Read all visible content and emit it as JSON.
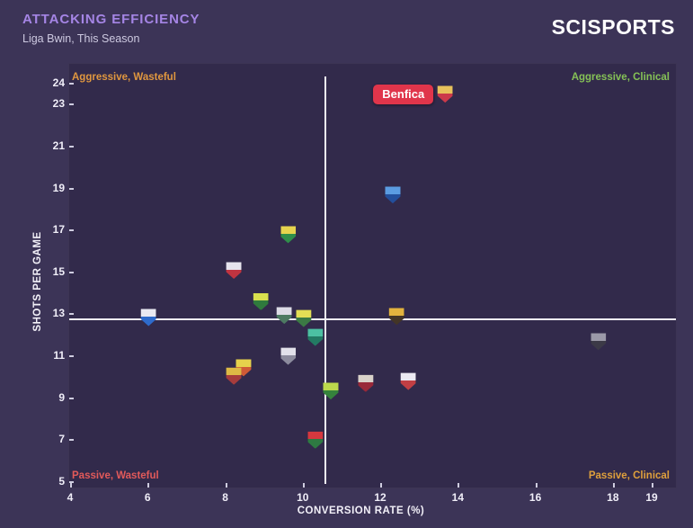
{
  "header": {
    "title": "ATTACKING EFFICIENCY",
    "subtitle": "Liga Bwin, This Season",
    "logo": "SCISPORTS"
  },
  "colors": {
    "background": "#3c3457",
    "panel": "#322a4b",
    "title": "#a585e5",
    "subtitle": "#cdc9e0",
    "axis_text": "#f0eef8"
  },
  "chart_data": {
    "type": "scatter",
    "title": "Attacking Efficiency",
    "subtitle": "Liga Bwin, This Season",
    "xlabel": "CONVERSION RATE (%)",
    "ylabel": "SHOTS PER GAME",
    "xlim": [
      4,
      19
    ],
    "ylim": [
      5,
      24
    ],
    "x_ticks": [
      4,
      6,
      8,
      10,
      12,
      14,
      16,
      18,
      19
    ],
    "y_ticks": [
      5,
      7,
      9,
      11,
      13,
      15,
      17,
      19,
      21,
      23,
      24
    ],
    "grid": false,
    "legend": "none",
    "crosshair": {
      "x": 10.55,
      "y": 12.75,
      "color": "#f2f0f7"
    },
    "quadrant_labels": [
      {
        "text": "Aggressive, Wasteful",
        "position": "top-left",
        "color": "#e0973f"
      },
      {
        "text": "Aggressive, Clinical",
        "position": "top-right",
        "color": "#85c156"
      },
      {
        "text": "Passive, Wasteful",
        "position": "bottom-left",
        "color": "#e25a5a"
      },
      {
        "text": "Passive, Clinical",
        "position": "bottom-right",
        "color": "#dfa03c"
      }
    ],
    "annotation": {
      "text": "Benfica",
      "x": 13.65,
      "y": 23.5,
      "bg": "#e0354b",
      "fg": "#ffffff"
    },
    "points": [
      {
        "x": 13.65,
        "y": 23.5,
        "crest": "red-white-eagle",
        "c1": "#e8c25c",
        "c2": "#cc3a4a"
      },
      {
        "x": 12.3,
        "y": 18.7,
        "crest": "blue-gold",
        "c1": "#5b9ce2",
        "c2": "#234f9c"
      },
      {
        "x": 9.6,
        "y": 16.8,
        "crest": "green-yellow",
        "c1": "#e6d44e",
        "c2": "#2f8f4a"
      },
      {
        "x": 8.2,
        "y": 15.1,
        "crest": "red-white",
        "c1": "#e7e4ee",
        "c2": "#c03440"
      },
      {
        "x": 8.9,
        "y": 13.6,
        "crest": "yellow-green",
        "c1": "#d9e04e",
        "c2": "#2f7a3d"
      },
      {
        "x": 9.5,
        "y": 12.95,
        "crest": "white-darkgreen",
        "c1": "#dcdbe6",
        "c2": "#4d7a62"
      },
      {
        "x": 10.0,
        "y": 12.8,
        "crest": "yellow-green-2",
        "c1": "#e4df55",
        "c2": "#3b7a44"
      },
      {
        "x": 12.4,
        "y": 12.9,
        "crest": "yellow-black",
        "c1": "#e2b33e",
        "c2": "#433526"
      },
      {
        "x": 6.0,
        "y": 12.85,
        "crest": "blue-white-crown",
        "c1": "#e9e9f2",
        "c2": "#2e6bcc"
      },
      {
        "x": 10.3,
        "y": 11.9,
        "crest": "teal",
        "c1": "#4cc0a2",
        "c2": "#237a63"
      },
      {
        "x": 9.6,
        "y": 11.0,
        "crest": "white-gray",
        "c1": "#e2e1ea",
        "c2": "#8c8b9d"
      },
      {
        "x": 8.45,
        "y": 10.45,
        "crest": "yellow-orange",
        "c1": "#e6d24c",
        "c2": "#cf5a36"
      },
      {
        "x": 8.2,
        "y": 10.05,
        "crest": "gold-red",
        "c1": "#ddb945",
        "c2": "#a63c3c"
      },
      {
        "x": 10.7,
        "y": 9.35,
        "crest": "lime-green",
        "c1": "#bcd94c",
        "c2": "#35823c"
      },
      {
        "x": 11.6,
        "y": 9.7,
        "crest": "maroon-cross",
        "c1": "#d9d2ca",
        "c2": "#99293a"
      },
      {
        "x": 12.7,
        "y": 9.8,
        "crest": "white-red-stripes",
        "c1": "#eceaf2",
        "c2": "#c23f44"
      },
      {
        "x": 10.3,
        "y": 7.0,
        "crest": "red-green",
        "c1": "#d6383f",
        "c2": "#2e7a42"
      },
      {
        "x": 17.6,
        "y": 11.7,
        "crest": "gray-dark",
        "c1": "#9b99a8",
        "c2": "#3c3a47"
      }
    ]
  }
}
